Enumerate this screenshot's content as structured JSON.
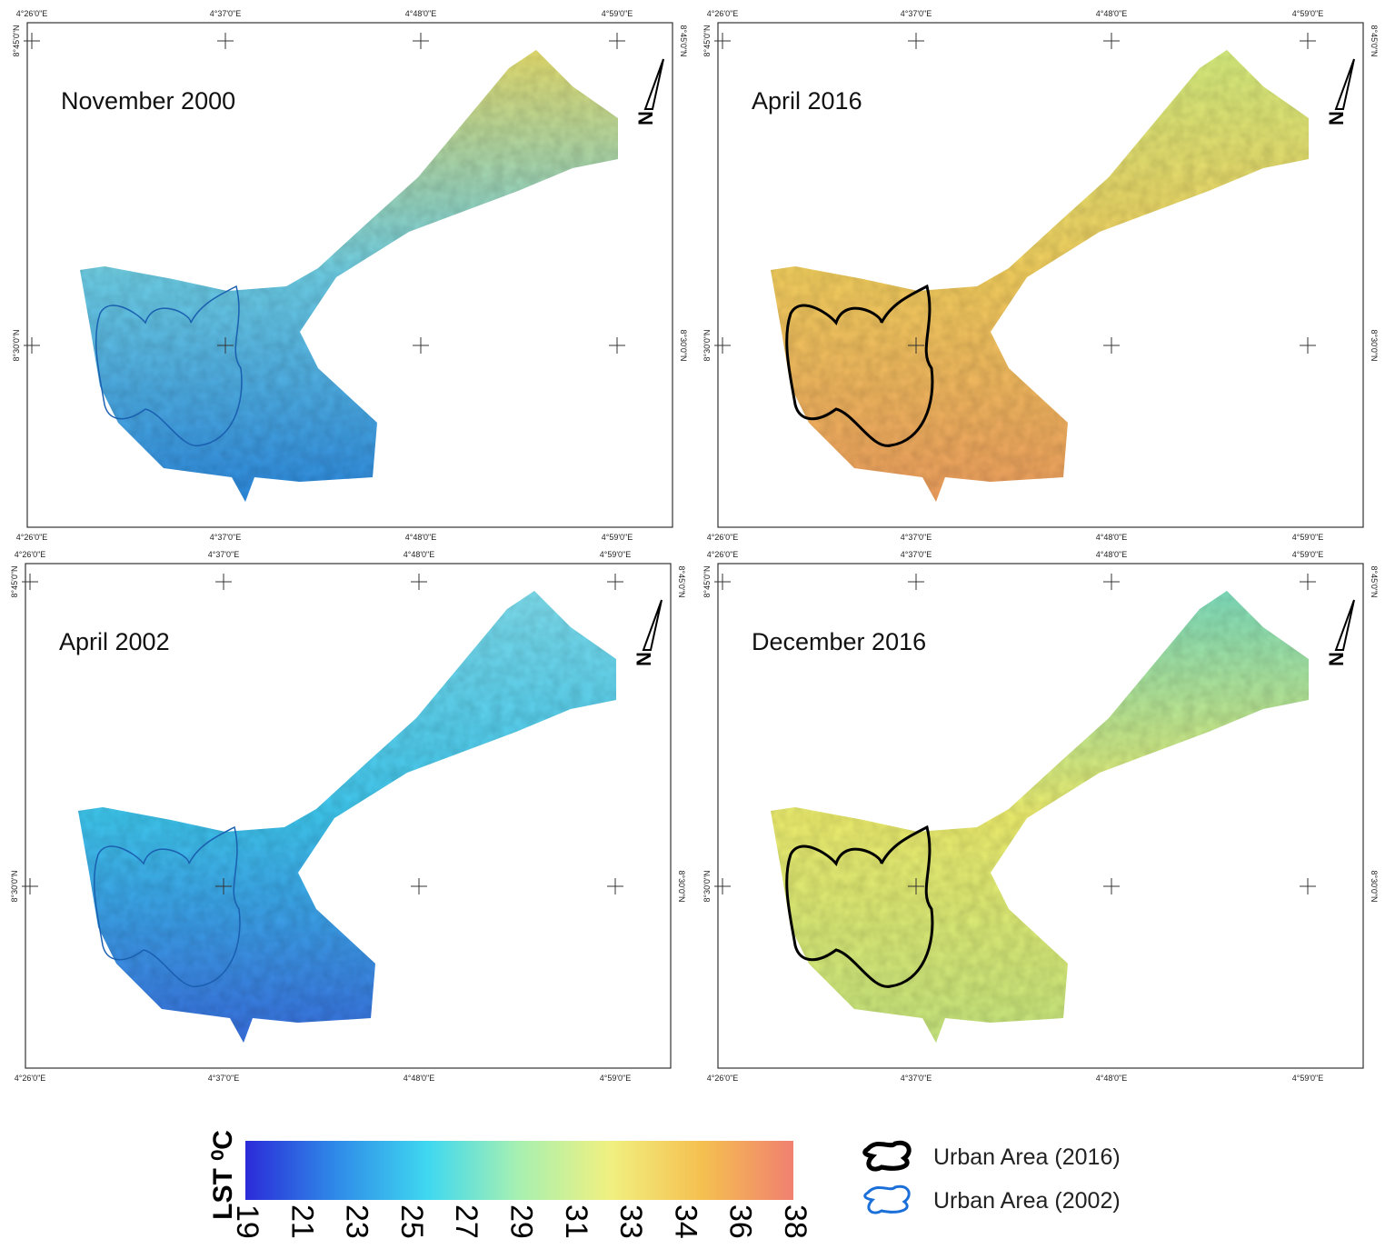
{
  "panels": [
    {
      "title": "November 2000",
      "colors": [
        "#2f8be0",
        "#6fd0e8",
        "#e8e070"
      ],
      "outline_color": "#1a5fb0"
    },
    {
      "title": "April 2016",
      "colors": [
        "#f0a060",
        "#f5d060",
        "#d8f080"
      ],
      "outline_color": "#000000"
    },
    {
      "title": "April 2002",
      "colors": [
        "#3a70e0",
        "#40c8f0",
        "#80e0f0"
      ],
      "outline_color": "#1a5fb0"
    },
    {
      "title": "December 2016",
      "colors": [
        "#c8e880",
        "#f0f070",
        "#80e0c0"
      ],
      "outline_color": "#000000"
    }
  ],
  "lon_labels": [
    "4°26'0\"E",
    "4°37'0\"E",
    "4°48'0\"E",
    "4°59'0\"E"
  ],
  "lat_labels": [
    "8°45'0\"N",
    "8°30'0\"N"
  ],
  "north_label": "N",
  "colorbar": {
    "title": "LST ⁰C",
    "ticks": [
      19,
      21,
      23,
      25,
      27,
      29,
      31,
      33,
      34,
      36,
      38
    ],
    "colors": [
      "#2b2bd8",
      "#2f8be8",
      "#3fd8f0",
      "#a8f0b0",
      "#f0f080",
      "#f5c050",
      "#f08070"
    ]
  },
  "legend": [
    {
      "label": "Urban Area (2016)",
      "color": "#000000"
    },
    {
      "label": "Urban Area (2002)",
      "color": "#1a6fd8"
    }
  ]
}
